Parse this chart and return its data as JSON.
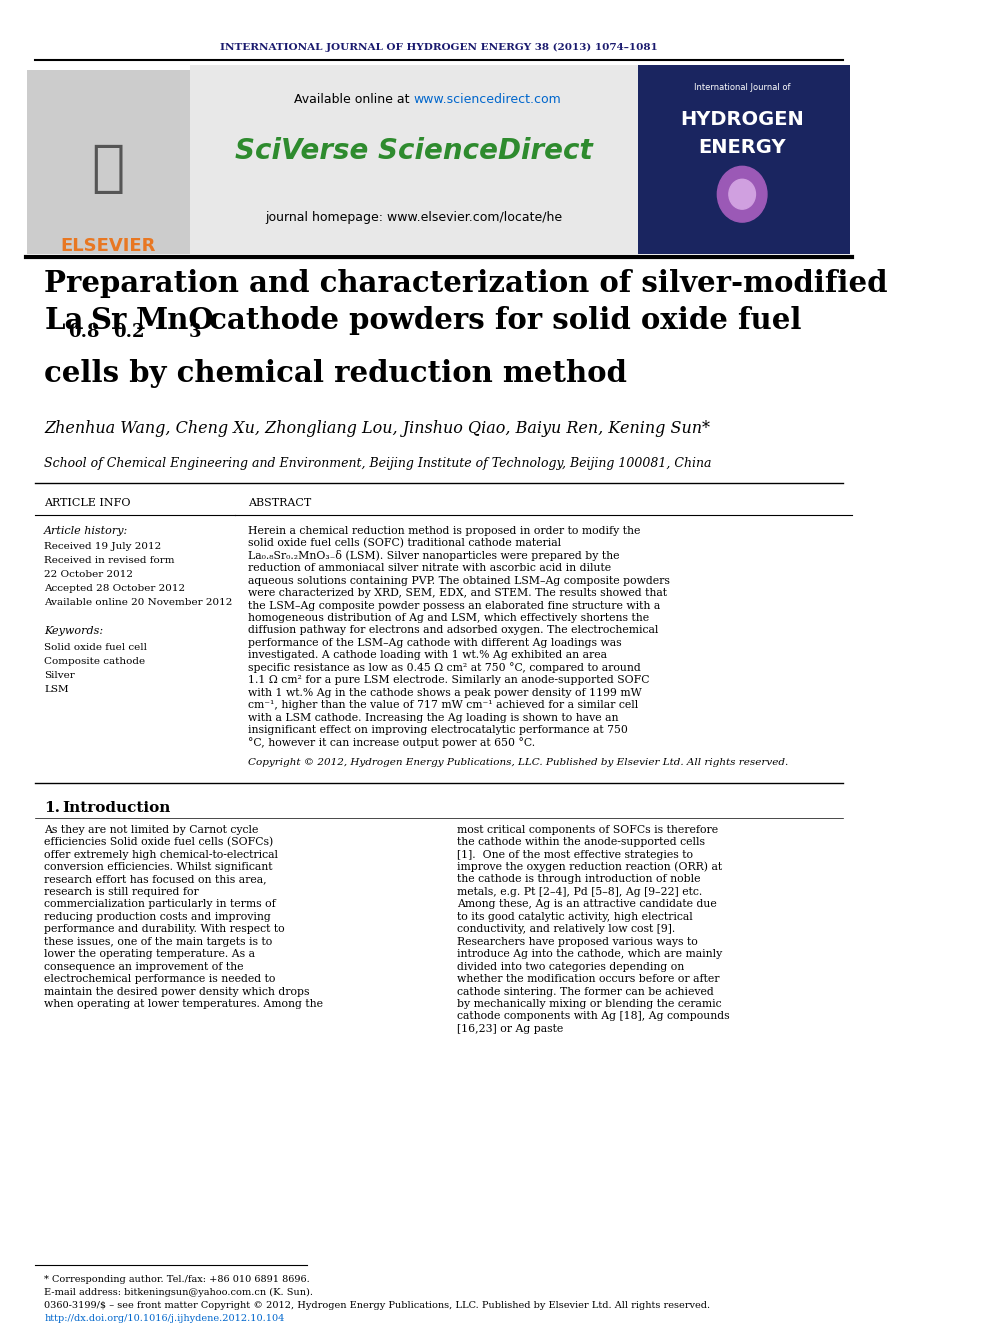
{
  "journal_header": "INTERNATIONAL JOURNAL OF HYDROGEN ENERGY 38 (2013) 1074–1081",
  "available_online": "Available online at ",
  "sciencedirect_url": "www.sciencedirect.com",
  "sciverse_text": "SciVerse ScienceDirect",
  "journal_homepage": "journal homepage: www.elsevier.com/locate/he",
  "title_line1": "Preparation and characterization of silver-modified",
  "title_line2": "La",
  "title_line2b": "0.8",
  "title_line2c": "Sr",
  "title_line2d": "0.2",
  "title_line2e": "MnO",
  "title_line2f": "3",
  "title_line2g": " cathode powders for solid oxide fuel",
  "title_line3": "cells by chemical reduction method",
  "authors": "Zhenhua Wang, Cheng Xu, Zhongliang Lou, Jinshuo Qiao, Baiyu Ren, Kening Sun*",
  "affiliation": "School of Chemical Engineering and Environment, Beijing Institute of Technology, Beijing 100081, China",
  "article_info_label": "ARTICLE INFO",
  "abstract_label": "ABSTRACT",
  "article_history_label": "Article history:",
  "received1": "Received 19 July 2012",
  "received2": "Received in revised form",
  "received2b": "22 October 2012",
  "accepted": "Accepted 28 October 2012",
  "available": "Available online 20 November 2012",
  "keywords_label": "Keywords:",
  "kw1": "Solid oxide fuel cell",
  "kw2": "Composite cathode",
  "kw3": "Silver",
  "kw4": "LSM",
  "abstract_text": "Herein a chemical reduction method is proposed in order to modify the solid oxide fuel cells (SOFC) traditional cathode material La₀.₈Sr₀.₂MnO₃₋δ (LSM). Silver nanoparticles were prepared by the reduction of ammoniacal silver nitrate with ascorbic acid in dilute aqueous solutions containing PVP. The obtained LSM–Ag composite powders were characterized by XRD, SEM, EDX, and STEM. The results showed that the LSM–Ag composite powder possess an elaborated fine structure with a homogeneous distribution of Ag and LSM, which effectively shortens the diffusion pathway for electrons and adsorbed oxygen. The electrochemical performance of the LSM–Ag cathode with different Ag loadings was investigated. A cathode loading with 1 wt.% Ag exhibited an area specific resistance as low as 0.45 Ω cm² at 750 °C, compared to around 1.1 Ω cm² for a pure LSM electrode. Similarly an anode-supported SOFC with 1 wt.% Ag in the cathode shows a peak power density of 1199 mW cm⁻¹, higher than the value of 717 mW cm⁻¹ achieved for a similar cell with a LSM cathode. Increasing the Ag loading is shown to have an insignificant effect on improving electrocatalytic performance at 750 °C, however it can increase output power at 650 °C.",
  "copyright": "Copyright © 2012, Hydrogen Energy Publications, LLC. Published by Elsevier Ltd. All rights reserved.",
  "intro_number": "1.",
  "intro_label": "Introduction",
  "intro_text_left": "As they are not limited by Carnot cycle efficiencies Solid oxide fuel cells (SOFCs) offer extremely high chemical-to-electrical conversion efficiencies. Whilst significant research effort has focused on this area, research is still required for commercialization particularly in terms of reducing production costs and improving performance and durability. With respect to these issues, one of the main targets is to lower the operating temperature. As a consequence an improvement of the electrochemical performance is needed to maintain the desired power density which drops when operating at lower temperatures. Among the",
  "intro_text_right": "most critical components of SOFCs is therefore the cathode within the anode-supported cells [1].\n\nOne of the most effective strategies to improve the oxygen reduction reaction (ORR) at the cathode is through introduction of noble metals, e.g. Pt [2–4], Pd [5–8], Ag [9–22] etc. Among these, Ag is an attractive candidate due to its good catalytic activity, high electrical conductivity, and relatively low cost [9]. Researchers have proposed various ways to introduce Ag into the cathode, which are mainly divided into two categories depending on whether the modification occurs before or after cathode sintering. The former can be achieved by mechanically mixing or blending the ceramic cathode components with Ag [18], Ag compounds [16,23] or Ag paste",
  "footnote1": "* Corresponding author. Tel./fax: +86 010 6891 8696.",
  "footnote2": "E-mail address: bitkeningsun@yahoo.com.cn (K. Sun).",
  "footnote3": "0360-3199/$ – see front matter Copyright © 2012, Hydrogen Energy Publications, LLC. Published by Elsevier Ltd. All rights reserved.",
  "footnote4": "http://dx.doi.org/10.1016/j.ijhydene.2012.10.104",
  "bg_color": "#ffffff",
  "header_bg": "#f0f0f0",
  "dark_navy": "#1a1a6e",
  "green_color": "#2e8b2e",
  "orange_color": "#e87722",
  "black": "#000000",
  "gray_bg": "#e8e8e8"
}
